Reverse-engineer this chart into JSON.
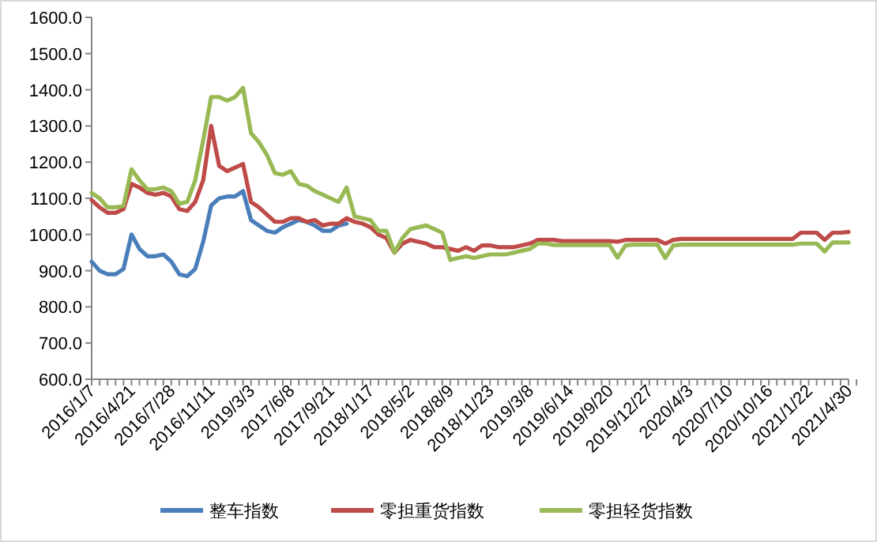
{
  "chart_data": {
    "type": "line",
    "categories": [
      "2016/1/7",
      null,
      null,
      null,
      null,
      "2016/4/21",
      null,
      null,
      null,
      null,
      "2016/7/28",
      null,
      null,
      null,
      null,
      "2016/11/11",
      null,
      null,
      null,
      null,
      "2019/3/3",
      null,
      null,
      null,
      null,
      "2017/6/8",
      null,
      null,
      null,
      null,
      "2017/9/21",
      null,
      null,
      null,
      null,
      "2018/1/17",
      null,
      null,
      null,
      null,
      "2018/5/2",
      null,
      null,
      null,
      null,
      "2018/8/9",
      null,
      null,
      null,
      null,
      "2018/11/23",
      null,
      null,
      null,
      null,
      "2019/3/8",
      null,
      null,
      null,
      null,
      "2019/6/14",
      null,
      null,
      null,
      null,
      "2019/9/20",
      null,
      null,
      null,
      null,
      "2019/12/27",
      null,
      null,
      null,
      null,
      "2020/4/3",
      null,
      null,
      null,
      null,
      "2020/7/10",
      null,
      null,
      null,
      null,
      "2020/10/16",
      null,
      null,
      null,
      null,
      "2021/1/22",
      null,
      null,
      null,
      null,
      "2021/4/30"
    ],
    "series": [
      {
        "name": "整车指数",
        "color": "#4a7ebb",
        "values": [
          925,
          900,
          890,
          890,
          905,
          1000,
          960,
          940,
          940,
          945,
          925,
          890,
          885,
          905,
          980,
          1080,
          1100,
          1105,
          1105,
          1120,
          1040,
          1025,
          1010,
          1005,
          1020,
          1030,
          1040,
          1035,
          1025,
          1010,
          1010,
          1025,
          1030,
          null,
          null,
          null,
          null,
          null,
          null,
          null,
          null,
          null,
          null,
          null,
          null,
          null,
          null,
          null,
          null,
          null,
          null,
          null,
          null,
          null,
          null,
          null,
          null,
          null,
          null,
          null,
          null,
          null,
          null,
          null,
          null,
          null,
          null,
          null,
          null,
          null,
          null,
          null,
          null,
          null,
          null,
          null,
          null,
          null,
          null,
          null,
          null,
          null,
          null,
          null,
          null,
          null,
          null,
          null,
          null,
          null,
          null,
          null,
          null,
          null,
          null,
          null
        ]
      },
      {
        "name": "零担重货指数",
        "color": "#be4b48",
        "values": [
          1095,
          1075,
          1060,
          1060,
          1070,
          1140,
          1130,
          1115,
          1110,
          1115,
          1105,
          1070,
          1065,
          1090,
          1150,
          1300,
          1190,
          1175,
          1185,
          1195,
          1090,
          1075,
          1055,
          1035,
          1035,
          1045,
          1045,
          1035,
          1040,
          1025,
          1030,
          1030,
          1045,
          1035,
          1030,
          1020,
          1000,
          990,
          950,
          975,
          985,
          980,
          975,
          965,
          965,
          960,
          955,
          965,
          955,
          970,
          970,
          965,
          965,
          965,
          970,
          975,
          985,
          985,
          985,
          982,
          982,
          982,
          982,
          982,
          982,
          982,
          980,
          985,
          985,
          985,
          985,
          985,
          975,
          985,
          988,
          988,
          988,
          988,
          988,
          988,
          988,
          988,
          988,
          988,
          988,
          988,
          988,
          988,
          988,
          1005,
          1005,
          1005,
          985,
          1005,
          1005,
          1007
        ]
      },
      {
        "name": "零担轻货指数",
        "color": "#98b954",
        "values": [
          1115,
          1100,
          1075,
          1075,
          1080,
          1180,
          1150,
          1125,
          1125,
          1130,
          1120,
          1085,
          1090,
          1150,
          1260,
          1380,
          1380,
          1370,
          1380,
          1405,
          1280,
          1255,
          1220,
          1170,
          1165,
          1175,
          1140,
          1135,
          1120,
          1110,
          1100,
          1090,
          1130,
          1050,
          1045,
          1040,
          1010,
          1010,
          950,
          990,
          1015,
          1020,
          1025,
          1015,
          1005,
          930,
          935,
          940,
          935,
          940,
          945,
          945,
          945,
          950,
          955,
          960,
          975,
          975,
          971,
          971,
          971,
          971,
          971,
          971,
          971,
          971,
          936,
          970,
          972,
          972,
          972,
          972,
          935,
          970,
          972,
          972,
          972,
          972,
          972,
          972,
          972,
          972,
          972,
          972,
          972,
          972,
          972,
          972,
          972,
          975,
          975,
          975,
          953,
          978,
          978,
          978
        ]
      }
    ],
    "ylim": [
      600,
      1600
    ],
    "yticks": [
      {
        "value": 600,
        "label": "600.0"
      },
      {
        "value": 700,
        "label": "700.0"
      },
      {
        "value": 800,
        "label": "800.0"
      },
      {
        "value": 900,
        "label": "900.0"
      },
      {
        "value": 1000,
        "label": "1000.0"
      },
      {
        "value": 1100,
        "label": "1100.0"
      },
      {
        "value": 1200,
        "label": "1200.0"
      },
      {
        "value": 1300,
        "label": "1300.0"
      },
      {
        "value": 1400,
        "label": "1400.0"
      },
      {
        "value": 1500,
        "label": "1500.0"
      },
      {
        "value": 1600,
        "label": "1600.0"
      }
    ],
    "grid": false,
    "legend": "bottom",
    "marker": "none",
    "line_style": "solid"
  }
}
